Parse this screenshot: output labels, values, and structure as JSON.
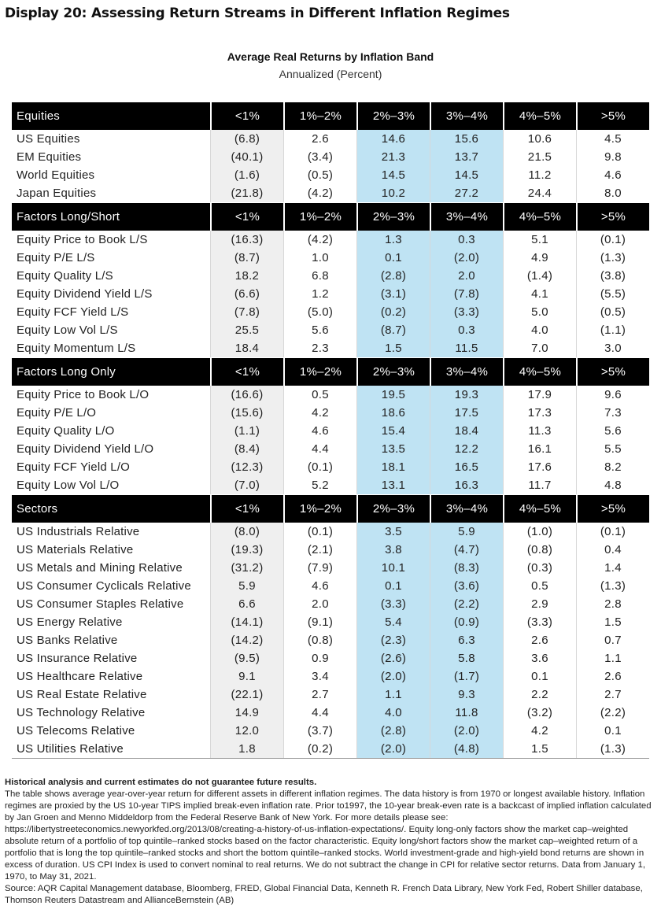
{
  "display_title": "Display 20: Assessing Return Streams in Different Inflation Regimes",
  "table_title": "Average Real Returns by Inflation Band",
  "table_subtitle": "Annualized (Percent)",
  "bands": [
    "<1%",
    "1%–2%",
    "2%–3%",
    "3%–4%",
    "4%–5%",
    ">5%"
  ],
  "colors": {
    "header_bg": "#000000",
    "highlight": "#bfe3f3",
    "first_band_bg": "#efefef"
  },
  "sections": [
    {
      "name": "Equities",
      "rows": [
        {
          "label": "US Equities",
          "values": [
            "(6.8)",
            "2.6",
            "14.6",
            "15.6",
            "10.6",
            "4.5"
          ]
        },
        {
          "label": "EM Equities",
          "values": [
            "(40.1)",
            "(3.4)",
            "21.3",
            "13.7",
            "21.5",
            "9.8"
          ]
        },
        {
          "label": "World Equities",
          "values": [
            "(1.6)",
            "(0.5)",
            "14.5",
            "14.5",
            "11.2",
            "4.6"
          ]
        },
        {
          "label": "Japan Equities",
          "values": [
            "(21.8)",
            "(4.2)",
            "10.2",
            "27.2",
            "24.4",
            "8.0"
          ]
        }
      ]
    },
    {
      "name": "Factors Long/Short",
      "rows": [
        {
          "label": "Equity Price to Book L/S",
          "values": [
            "(16.3)",
            "(4.2)",
            "1.3",
            "0.3",
            "5.1",
            "(0.1)"
          ]
        },
        {
          "label": "Equity P/E L/S",
          "values": [
            "(8.7)",
            "1.0",
            "0.1",
            "(2.0)",
            "4.9",
            "(1.3)"
          ]
        },
        {
          "label": "Equity Quality L/S",
          "values": [
            "18.2",
            "6.8",
            "(2.8)",
            "2.0",
            "(1.4)",
            "(3.8)"
          ]
        },
        {
          "label": "Equity Dividend Yield L/S",
          "values": [
            "(6.6)",
            "1.2",
            "(3.1)",
            "(7.8)",
            "4.1",
            "(5.5)"
          ]
        },
        {
          "label": "Equity FCF Yield L/S",
          "values": [
            "(7.8)",
            "(5.0)",
            "(0.2)",
            "(3.3)",
            "5.0",
            "(0.5)"
          ]
        },
        {
          "label": "Equity Low Vol L/S",
          "values": [
            "25.5",
            "5.6",
            "(8.7)",
            "0.3",
            "4.0",
            "(1.1)"
          ]
        },
        {
          "label": "Equity Momentum L/S",
          "values": [
            "18.4",
            "2.3",
            "1.5",
            "11.5",
            "7.0",
            "3.0"
          ]
        }
      ]
    },
    {
      "name": "Factors Long Only",
      "rows": [
        {
          "label": "Equity Price to Book L/O",
          "values": [
            "(16.6)",
            "0.5",
            "19.5",
            "19.3",
            "17.9",
            "9.6"
          ]
        },
        {
          "label": "Equity P/E L/O",
          "values": [
            "(15.6)",
            "4.2",
            "18.6",
            "17.5",
            "17.3",
            "7.3"
          ]
        },
        {
          "label": "Equity Quality L/O",
          "values": [
            "(1.1)",
            "4.6",
            "15.4",
            "18.4",
            "11.3",
            "5.6"
          ]
        },
        {
          "label": "Equity Dividend Yield L/O",
          "values": [
            "(8.4)",
            "4.4",
            "13.5",
            "12.2",
            "16.1",
            "5.5"
          ]
        },
        {
          "label": "Equity FCF Yield L/O",
          "values": [
            "(12.3)",
            "(0.1)",
            "18.1",
            "16.5",
            "17.6",
            "8.2"
          ]
        },
        {
          "label": "Equity Low Vol L/O",
          "values": [
            "(7.0)",
            "5.2",
            "13.1",
            "16.3",
            "11.7",
            "4.8"
          ]
        }
      ]
    },
    {
      "name": "Sectors",
      "rows": [
        {
          "label": "US Industrials Relative",
          "values": [
            "(8.0)",
            "(0.1)",
            "3.5",
            "5.9",
            "(1.0)",
            "(0.1)"
          ]
        },
        {
          "label": "US Materials Relative",
          "values": [
            "(19.3)",
            "(2.1)",
            "3.8",
            "(4.7)",
            "(0.8)",
            "0.4"
          ]
        },
        {
          "label": "US Metals and Mining Relative",
          "values": [
            "(31.2)",
            "(7.9)",
            "10.1",
            "(8.3)",
            "(0.3)",
            "1.4"
          ]
        },
        {
          "label": "US Consumer Cyclicals Relative",
          "values": [
            "5.9",
            "4.6",
            "0.1",
            "(3.6)",
            "0.5",
            "(1.3)"
          ]
        },
        {
          "label": "US Consumer Staples Relative",
          "values": [
            "6.6",
            "2.0",
            "(3.3)",
            "(2.2)",
            "2.9",
            "2.8"
          ]
        },
        {
          "label": "US Energy Relative",
          "values": [
            "(14.1)",
            "(9.1)",
            "5.4",
            "(0.9)",
            "(3.3)",
            "1.5"
          ]
        },
        {
          "label": "US Banks Relative",
          "values": [
            "(14.2)",
            "(0.8)",
            "(2.3)",
            "6.3",
            "2.6",
            "0.7"
          ]
        },
        {
          "label": "US Insurance Relative",
          "values": [
            "(9.5)",
            "0.9",
            "(2.6)",
            "5.8",
            "3.6",
            "1.1"
          ]
        },
        {
          "label": "US Healthcare Relative",
          "values": [
            "9.1",
            "3.4",
            "(2.0)",
            "(1.7)",
            "0.1",
            "2.6"
          ]
        },
        {
          "label": "US Real Estate Relative",
          "values": [
            "(22.1)",
            "2.7",
            "1.1",
            "9.3",
            "2.2",
            "2.7"
          ]
        },
        {
          "label": "US Technology Relative",
          "values": [
            "14.9",
            "4.4",
            "4.0",
            "11.8",
            "(3.2)",
            "(2.2)"
          ]
        },
        {
          "label": "US Telecoms Relative",
          "values": [
            "12.0",
            "(3.7)",
            "(2.8)",
            "(2.0)",
            "4.2",
            "0.1"
          ]
        },
        {
          "label": "US Utilities Relative",
          "values": [
            "1.8",
            "(0.2)",
            "(2.0)",
            "(4.8)",
            "1.5",
            "(1.3)"
          ]
        }
      ]
    }
  ],
  "notes": {
    "disclaimer": "Historical analysis and current estimates do not guarantee future results.",
    "body": "The table shows average year-over-year return for different assets in different inflation regimes. The data history is from 1970 or longest available history. Inflation regimes are proxied by the US 10-year TIPS implied break-even inflation rate. Prior to1997, the 10-year break-even rate is a backcast of implied inflation calculated by Jan Groen and Menno Middeldorp from the Federal Reserve Bank of New York. For more details please see: https://libertystreeteconomics.newyorkfed.org/2013/08/creating-a-history-of-us-inflation-expectations/. Equity long-only factors show the market cap–weighted absolute return of a portfolio of top quintile–ranked stocks based on the factor characteristic. Equity long/short factors show the market cap–weighted return of a portfolio that is long the top quintile–ranked stocks and short the bottom quintile–ranked stocks. World investment-grade and high-yield bond returns are shown in excess of duration. US CPI Index is used to convert nominal to real returns. We do not subtract the change in CPI for relative sector returns. Data from January 1, 1970, to May 31, 2021.",
    "source": "Source: AQR Capital Management database, Bloomberg, FRED, Global Financial Data, Kenneth R. French Data Library, New York Fed, Robert Shiller database, Thomson Reuters Datastream and AllianceBernstein (AB)"
  }
}
